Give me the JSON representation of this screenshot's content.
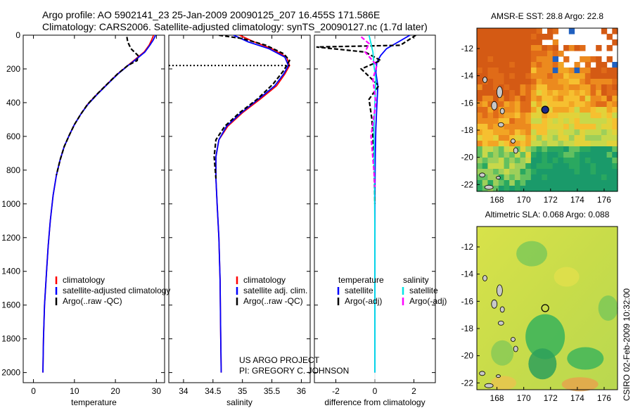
{
  "header": {
    "line1": "Argo profile: AO 5902141_23 25-Jan-2009 20090125_207 16.455S 171.586E",
    "line2": "Climatology: CARS2006. Satellite-adjusted climatology: synTS_20090127.nc (1.7d later)"
  },
  "credit": {
    "line1": "US ARGO PROJECT",
    "line2": "PI: GREGORY C. JOHNSON"
  },
  "stamp": "CSIRO 02-Feb-2009 10:32:00",
  "colors": {
    "clim": "#ff0000",
    "sat": "#0000ff",
    "argo": "#000000",
    "sat_sal": "#00e5e5",
    "argo_sal": "#ff00ff"
  },
  "chart_data": [
    {
      "type": "line",
      "xlabel": "temperature",
      "ylabel": "",
      "xlim": [
        -2.5,
        32
      ],
      "ylim": [
        2060,
        0
      ],
      "xticks": [
        0,
        10,
        20,
        30
      ],
      "yticks": [
        0,
        200,
        400,
        600,
        800,
        1000,
        1200,
        1400,
        1600,
        1800,
        2000
      ],
      "legend": [
        "climatology",
        "satellite-adjusted climatology",
        "Argo(..raw -QC)"
      ],
      "series": [
        {
          "name": "climatology",
          "color": "#ff0000",
          "dash": "",
          "x": [
            29.3,
            28.8,
            28.2,
            27,
            25,
            23,
            20.5,
            18,
            15.5,
            13.2,
            11.5,
            10,
            8.8,
            7.5,
            6.5,
            5.6,
            4.8,
            4.1,
            3.6,
            3.2,
            2.7,
            2.45,
            2.3
          ],
          "y": [
            0,
            30,
            60,
            100,
            140,
            180,
            230,
            290,
            350,
            410,
            470,
            530,
            590,
            660,
            740,
            830,
            950,
            1100,
            1250,
            1400,
            1600,
            1800,
            2000
          ]
        },
        {
          "name": "satellite-adjusted climatology",
          "color": "#0000ff",
          "dash": "",
          "x": [
            29.8,
            29.2,
            28.4,
            27.2,
            25.2,
            23.1,
            20.6,
            18.1,
            15.6,
            13.3,
            11.5,
            10,
            8.8,
            7.5,
            6.5,
            5.6,
            4.8,
            4.1,
            3.6,
            3.2,
            2.7,
            2.45,
            2.3
          ],
          "y": [
            0,
            30,
            60,
            100,
            140,
            180,
            230,
            290,
            350,
            410,
            470,
            530,
            590,
            660,
            740,
            830,
            950,
            1100,
            1250,
            1400,
            1600,
            1800,
            2000
          ]
        },
        {
          "name": "Argo(..raw -QC)",
          "color": "#000000",
          "dash": "6,3",
          "x": [
            22.8,
            23,
            23.8,
            25.5,
            25.3,
            23,
            20.5,
            18,
            15.5,
            13.2,
            11.5,
            10,
            8.8,
            7.5,
            6.5,
            5.6
          ],
          "y": [
            10,
            40,
            80,
            120,
            150,
            180,
            230,
            290,
            350,
            410,
            470,
            530,
            590,
            660,
            740,
            830
          ]
        }
      ]
    },
    {
      "type": "line",
      "xlabel": "salinity",
      "ylabel": "",
      "xlim": [
        33.75,
        36.15
      ],
      "ylim": [
        2060,
        0
      ],
      "xticks": [
        34,
        34.5,
        35,
        35.5,
        36
      ],
      "yticks": [],
      "legend": [
        "climatology",
        "satellite adj. clim.",
        "Argo(..raw -QC)"
      ],
      "series": [
        {
          "name": "climatology",
          "color": "#ff0000",
          "dash": "",
          "x": [
            34.95,
            35.2,
            35.5,
            35.75,
            35.8,
            35.72,
            35.58,
            35.3,
            35,
            34.75,
            34.6,
            34.55,
            34.55,
            34.57,
            34.6,
            34.62,
            34.63,
            34.64
          ],
          "y": [
            0,
            40,
            80,
            130,
            180,
            230,
            300,
            380,
            460,
            540,
            620,
            720,
            850,
            1000,
            1200,
            1450,
            1750,
            2000
          ]
        },
        {
          "name": "satellite adj. clim.",
          "color": "#0000ff",
          "dash": "",
          "x": [
            34.85,
            35.1,
            35.45,
            35.72,
            35.78,
            35.7,
            35.55,
            35.27,
            34.98,
            34.73,
            34.6,
            34.55,
            34.55,
            34.57,
            34.6,
            34.62,
            34.63,
            34.64
          ],
          "y": [
            0,
            40,
            80,
            130,
            180,
            230,
            300,
            380,
            460,
            540,
            620,
            720,
            850,
            1000,
            1200,
            1450,
            1750,
            2000
          ]
        },
        {
          "name": "Argo(..raw -QC)",
          "color": "#000000",
          "dash": "6,3",
          "x": [
            34.6,
            35,
            35.4,
            35.7,
            35.8,
            35.7,
            35.52,
            35.25,
            34.95,
            34.7,
            34.55,
            34.52,
            34.55
          ],
          "y": [
            0,
            20,
            60,
            110,
            150,
            210,
            290,
            380,
            460,
            540,
            620,
            720,
            850
          ]
        }
      ]
    },
    {
      "type": "line",
      "xlabel": "difference from climatology",
      "ylabel": "",
      "xlim": [
        -3.1,
        3.1
      ],
      "ylim": [
        2060,
        0
      ],
      "xticks": [
        -2,
        0,
        2
      ],
      "yticks": [],
      "legend": [
        "temperature",
        "satellite",
        "Argo(-adj)",
        "salinity",
        "satellite",
        "Argo(-adj)"
      ],
      "series": [
        {
          "name": "satellite",
          "color": "#0000ff",
          "dash": "",
          "x": [
            1.8,
            1.2,
            0.6,
            0.3,
            0.1,
            0.05,
            0.15,
            0.1,
            0.05,
            0.02,
            0,
            0
          ],
          "y": [
            0,
            40,
            80,
            120,
            160,
            220,
            300,
            420,
            550,
            700,
            1000,
            2000
          ]
        },
        {
          "name": "Argo(-adj)",
          "color": "#000000",
          "dash": "6,3",
          "x": [
            2.1,
            1.3,
            -3,
            -0.5,
            0.3,
            -0.7,
            0.2,
            -0.3,
            -0.15,
            -0.05,
            0
          ],
          "y": [
            0,
            60,
            70,
            100,
            150,
            200,
            300,
            380,
            500,
            700,
            1000
          ]
        },
        {
          "name": "satellite",
          "color": "#00e5e5",
          "dash": "",
          "x": [
            -0.3,
            -0.2,
            -0.1,
            -0.05,
            0.05,
            0,
            -0.05,
            -0.02,
            0,
            0
          ],
          "y": [
            0,
            50,
            100,
            180,
            260,
            400,
            550,
            800,
            1200,
            2000
          ]
        },
        {
          "name": "Argo(-adj)",
          "color": "#ff00ff",
          "dash": "6,3",
          "x": [
            -0.7,
            -0.3,
            -0.5,
            0.1,
            -0.1,
            0.05,
            -0.2,
            -0.05,
            0
          ],
          "y": [
            10,
            50,
            100,
            180,
            260,
            400,
            600,
            800,
            900
          ]
        }
      ]
    },
    {
      "type": "heatmap",
      "title": "AMSR-E SST: 28.8 Argo: 22.8",
      "xlim": [
        166.5,
        177
      ],
      "ylim": [
        -22.5,
        -10.5
      ],
      "xticks": [
        168,
        170,
        172,
        174,
        176
      ],
      "yticks": [
        -12,
        -14,
        -16,
        -18,
        -20,
        -22
      ],
      "marker": {
        "lon": 171.6,
        "lat": -16.5
      }
    },
    {
      "type": "heatmap",
      "title": "Altimetric SLA: 0.068 Argo: 0.088",
      "xlim": [
        166.5,
        177
      ],
      "ylim": [
        -22.5,
        -10.5
      ],
      "xticks": [
        168,
        170,
        172,
        174,
        176
      ],
      "yticks": [
        -12,
        -14,
        -16,
        -18,
        -20,
        -22
      ],
      "marker": {
        "lon": 171.6,
        "lat": -16.5
      }
    }
  ]
}
